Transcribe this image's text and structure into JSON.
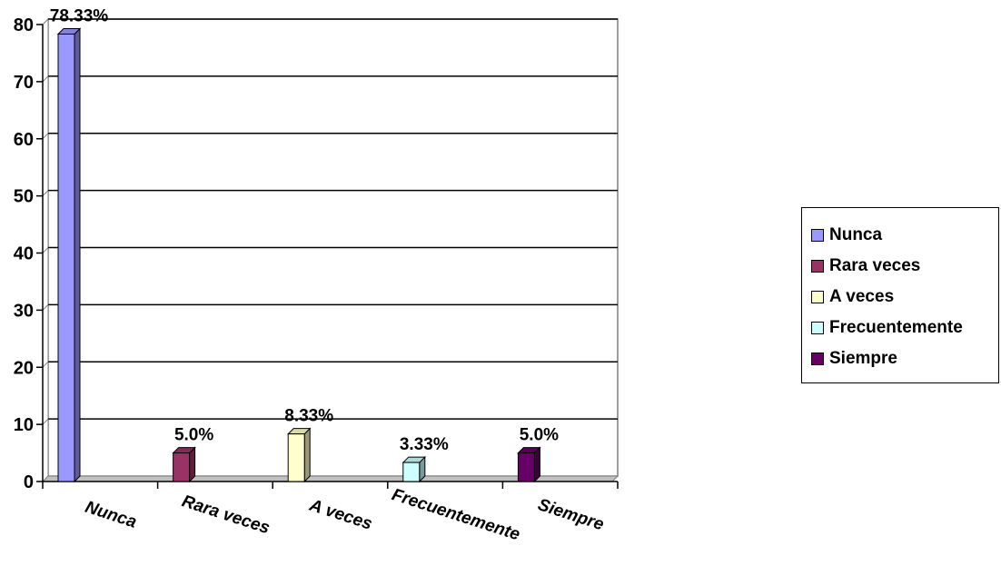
{
  "chart_data": {
    "type": "bar",
    "categories": [
      "Nunca",
      "Rara veces",
      "A veces",
      "Frecuentemente",
      "Siempre"
    ],
    "values": [
      78.33,
      5.0,
      8.33,
      3.33,
      5.0
    ],
    "data_labels": [
      "78.33%",
      "5.0%",
      "8.33%",
      "3.33%",
      "5.0%"
    ],
    "colors": [
      "#9999ff",
      "#993366",
      "#ffffcc",
      "#ccffff",
      "#660066"
    ],
    "ylim": [
      0,
      80
    ],
    "yticks": [
      0,
      10,
      20,
      30,
      40,
      50,
      60,
      70,
      80
    ],
    "grid": true,
    "legend": {
      "position": "right",
      "items": [
        "Nunca",
        "Rara veces",
        "A veces",
        "Frecuentemente",
        "Siempre"
      ]
    }
  }
}
